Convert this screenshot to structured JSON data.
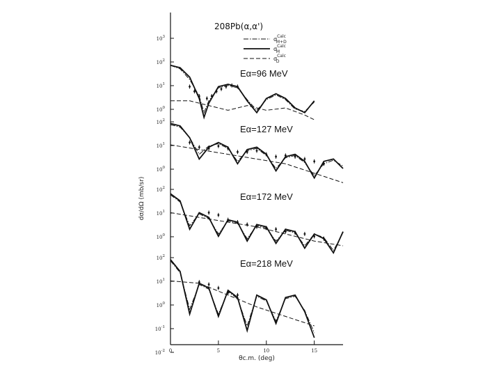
{
  "chart_data": {
    "type": "line",
    "title": "208Pb(α,α')",
    "xlabel": "θc.m. (deg)",
    "ylabel": "dσ/dΩ (mb/sr)",
    "xlim": [
      0,
      18
    ],
    "x_ticks": [
      "0",
      "5",
      "10",
      "15"
    ],
    "y_ticks_shared": [
      "10-2",
      "10-1",
      "100",
      "101",
      "102",
      "103"
    ],
    "legend_position": "top-right",
    "legend": [
      {
        "symbol": "σ",
        "sup": "Calc",
        "sub": "M+D",
        "style": "dash-dot"
      },
      {
        "symbol": "σ",
        "sup": "Calc",
        "sub": "M",
        "style": "solid"
      },
      {
        "symbol": "σ",
        "sup": "Calc",
        "sub": "D",
        "style": "dashed"
      }
    ],
    "panels": [
      {
        "label": "Eα=96 MeV",
        "y_ticks": [
          "103",
          "102",
          "101",
          "100"
        ],
        "series": [
          {
            "style": "solid",
            "x": [
              0,
              1,
              2,
              3,
              3.5,
              4,
              5,
              6,
              7,
              8,
              9,
              10,
              11,
              12,
              13,
              14,
              15
            ],
            "y": [
              1.8,
              1.7,
              1.3,
              0.4,
              -0.4,
              0.2,
              0.9,
              1.0,
              0.9,
              0.3,
              -0.2,
              0.4,
              0.6,
              0.4,
              0.0,
              -0.2,
              0.3
            ]
          },
          {
            "style": "dash-dot",
            "x": [
              0,
              1,
              2,
              3,
              3.5,
              4,
              5,
              6,
              7,
              8,
              9,
              10,
              11,
              12,
              13,
              14,
              15
            ],
            "y": [
              1.8,
              1.65,
              1.2,
              0.5,
              -0.2,
              0.3,
              0.85,
              0.95,
              0.85,
              0.35,
              -0.1,
              0.35,
              0.55,
              0.35,
              -0.05,
              -0.15,
              0.25
            ]
          },
          {
            "style": "dashed",
            "x": [
              0,
              2,
              4,
              6,
              8,
              10,
              12,
              14,
              15
            ],
            "y": [
              0.3,
              0.3,
              0.1,
              -0.1,
              0.1,
              -0.1,
              0.0,
              -0.3,
              -0.5
            ]
          }
        ],
        "points": {
          "x": [
            2,
            2.5,
            3,
            3.8,
            4.3,
            4.8,
            5.3,
            5.8,
            6.4,
            7.0
          ],
          "y": [
            0.9,
            0.7,
            0.5,
            0.4,
            0.5,
            0.7,
            0.8,
            0.9,
            0.95,
            0.9
          ]
        }
      },
      {
        "label": "Eα=127 MeV",
        "y_ticks": [
          "102",
          "101",
          "100"
        ],
        "series": [
          {
            "style": "solid",
            "x": [
              0,
              1,
              2,
              3,
              4,
              5,
              6,
              7,
              8,
              9,
              10,
              11,
              12,
              13,
              14,
              15,
              16,
              17,
              18
            ],
            "y": [
              1.9,
              1.8,
              1.3,
              0.4,
              0.9,
              1.1,
              0.9,
              0.2,
              0.8,
              0.9,
              0.6,
              -0.1,
              0.5,
              0.6,
              0.3,
              -0.4,
              0.3,
              0.4,
              0.0
            ]
          },
          {
            "style": "dash-dot",
            "x": [
              0,
              1,
              2,
              3,
              4,
              5,
              6,
              7,
              8,
              9,
              10,
              11,
              12,
              13,
              14,
              15,
              16,
              17,
              18
            ],
            "y": [
              1.85,
              1.75,
              1.3,
              0.6,
              0.95,
              1.05,
              0.85,
              0.3,
              0.75,
              0.85,
              0.55,
              0.0,
              0.45,
              0.55,
              0.25,
              -0.3,
              0.2,
              0.35,
              0.1
            ]
          },
          {
            "style": "dashed",
            "x": [
              0,
              3,
              6,
              9,
              12,
              15,
              18
            ],
            "y": [
              1.0,
              0.8,
              0.6,
              0.4,
              0.2,
              -0.2,
              -0.6
            ]
          }
        ],
        "points": {
          "x": [
            2,
            3,
            4,
            5,
            6,
            7,
            8,
            9,
            10,
            11,
            12,
            13,
            14,
            15,
            16
          ],
          "y": [
            1.1,
            0.9,
            0.85,
            0.95,
            0.85,
            0.7,
            0.7,
            0.75,
            0.6,
            0.5,
            0.55,
            0.5,
            0.4,
            0.3,
            0.2
          ]
        }
      },
      {
        "label": "Eα=172 MeV",
        "y_ticks": [
          "102",
          "101",
          "100"
        ],
        "series": [
          {
            "style": "solid",
            "x": [
              0,
              1,
              2,
              3,
              4,
              5,
              6,
              7,
              8,
              9,
              10,
              11,
              12,
              13,
              14,
              15,
              16,
              17,
              18
            ],
            "y": [
              1.7,
              1.4,
              0.2,
              0.9,
              0.7,
              -0.1,
              0.6,
              0.5,
              -0.3,
              0.4,
              0.3,
              -0.4,
              0.2,
              0.1,
              -0.6,
              0.0,
              -0.2,
              -0.8,
              0.1
            ]
          },
          {
            "style": "dash-dot",
            "x": [
              0,
              1,
              2,
              3,
              4,
              5,
              6,
              7,
              8,
              9,
              10,
              11,
              12,
              13,
              14,
              15,
              16,
              17,
              18
            ],
            "y": [
              1.65,
              1.35,
              0.35,
              0.85,
              0.65,
              0.0,
              0.55,
              0.45,
              -0.2,
              0.35,
              0.25,
              -0.3,
              0.15,
              0.05,
              -0.5,
              0.0,
              -0.15,
              -0.7,
              0.05
            ]
          },
          {
            "style": "dashed",
            "x": [
              0,
              3,
              6,
              9,
              12,
              15,
              18
            ],
            "y": [
              0.9,
              0.7,
              0.5,
              0.3,
              0.0,
              -0.3,
              -0.5
            ]
          }
        ],
        "points": {
          "x": [
            4,
            5,
            6,
            7,
            8,
            9,
            10,
            11,
            12,
            13,
            14,
            15,
            16
          ],
          "y": [
            0.9,
            0.8,
            0.6,
            0.5,
            0.4,
            0.3,
            0.25,
            0.2,
            0.1,
            0.05,
            0.0,
            -0.1,
            -0.2
          ]
        }
      },
      {
        "label": "Eα=218 MeV",
        "y_ticks": [
          "102",
          "101",
          "100",
          "10-1",
          "10-2"
        ],
        "series": [
          {
            "style": "solid",
            "x": [
              0,
              1,
              2,
              3,
              4,
              5,
              6,
              7,
              8,
              9,
              10,
              11,
              12,
              13,
              14,
              15
            ],
            "y": [
              1.8,
              1.3,
              -0.5,
              0.8,
              0.6,
              -0.6,
              0.5,
              0.2,
              -1.2,
              0.3,
              0.1,
              -0.9,
              0.2,
              0.3,
              -0.4,
              -1.5
            ]
          },
          {
            "style": "dash-dot",
            "x": [
              0,
              1,
              2,
              3,
              4,
              5,
              6,
              7,
              8,
              9,
              10,
              11,
              12,
              13,
              14,
              15
            ],
            "y": [
              1.75,
              1.25,
              -0.3,
              0.75,
              0.55,
              -0.5,
              0.45,
              0.15,
              -1.0,
              0.25,
              0.05,
              -0.8,
              0.15,
              0.25,
              -0.35,
              -1.3
            ]
          },
          {
            "style": "dashed",
            "x": [
              0,
              3,
              6,
              9,
              12,
              15
            ],
            "y": [
              0.9,
              0.8,
              0.3,
              -0.2,
              -0.6,
              -1.0
            ]
          }
        ],
        "points": {
          "x": [
            3,
            4,
            5,
            6,
            7
          ],
          "y": [
            0.85,
            0.75,
            0.6,
            0.4,
            0.3
          ]
        }
      }
    ]
  }
}
